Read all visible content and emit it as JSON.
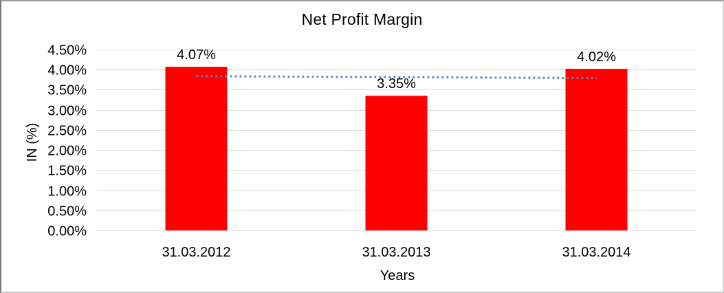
{
  "frame": {
    "background": "#ffffff",
    "border_color": "#9a9a9a"
  },
  "chart_data": {
    "type": "bar",
    "title": "Net Profit Margin",
    "xlabel": "Years",
    "ylabel": "IN (%)",
    "categories": [
      "31.03.2012",
      "31.03.2013",
      "31.03.2014"
    ],
    "series": [
      {
        "name": "Net Profit Margin",
        "values": [
          4.07,
          3.35,
          4.02
        ]
      }
    ],
    "data_labels": [
      "4.07%",
      "3.35%",
      "4.02%"
    ],
    "ylim": [
      0,
      4.5
    ],
    "ytick_step": 0.5,
    "ytick_labels": [
      "0.00%",
      "0.50%",
      "1.00%",
      "1.50%",
      "2.00%",
      "2.50%",
      "3.00%",
      "3.50%",
      "4.00%",
      "4.50%"
    ],
    "grid": true,
    "legend": "none",
    "bar_color": "#ff0000",
    "gridline_color": "#d9d9d9",
    "text_color": "#000000",
    "trendline": {
      "type": "linear",
      "style": "dotted",
      "color": "#4e86c6"
    }
  }
}
